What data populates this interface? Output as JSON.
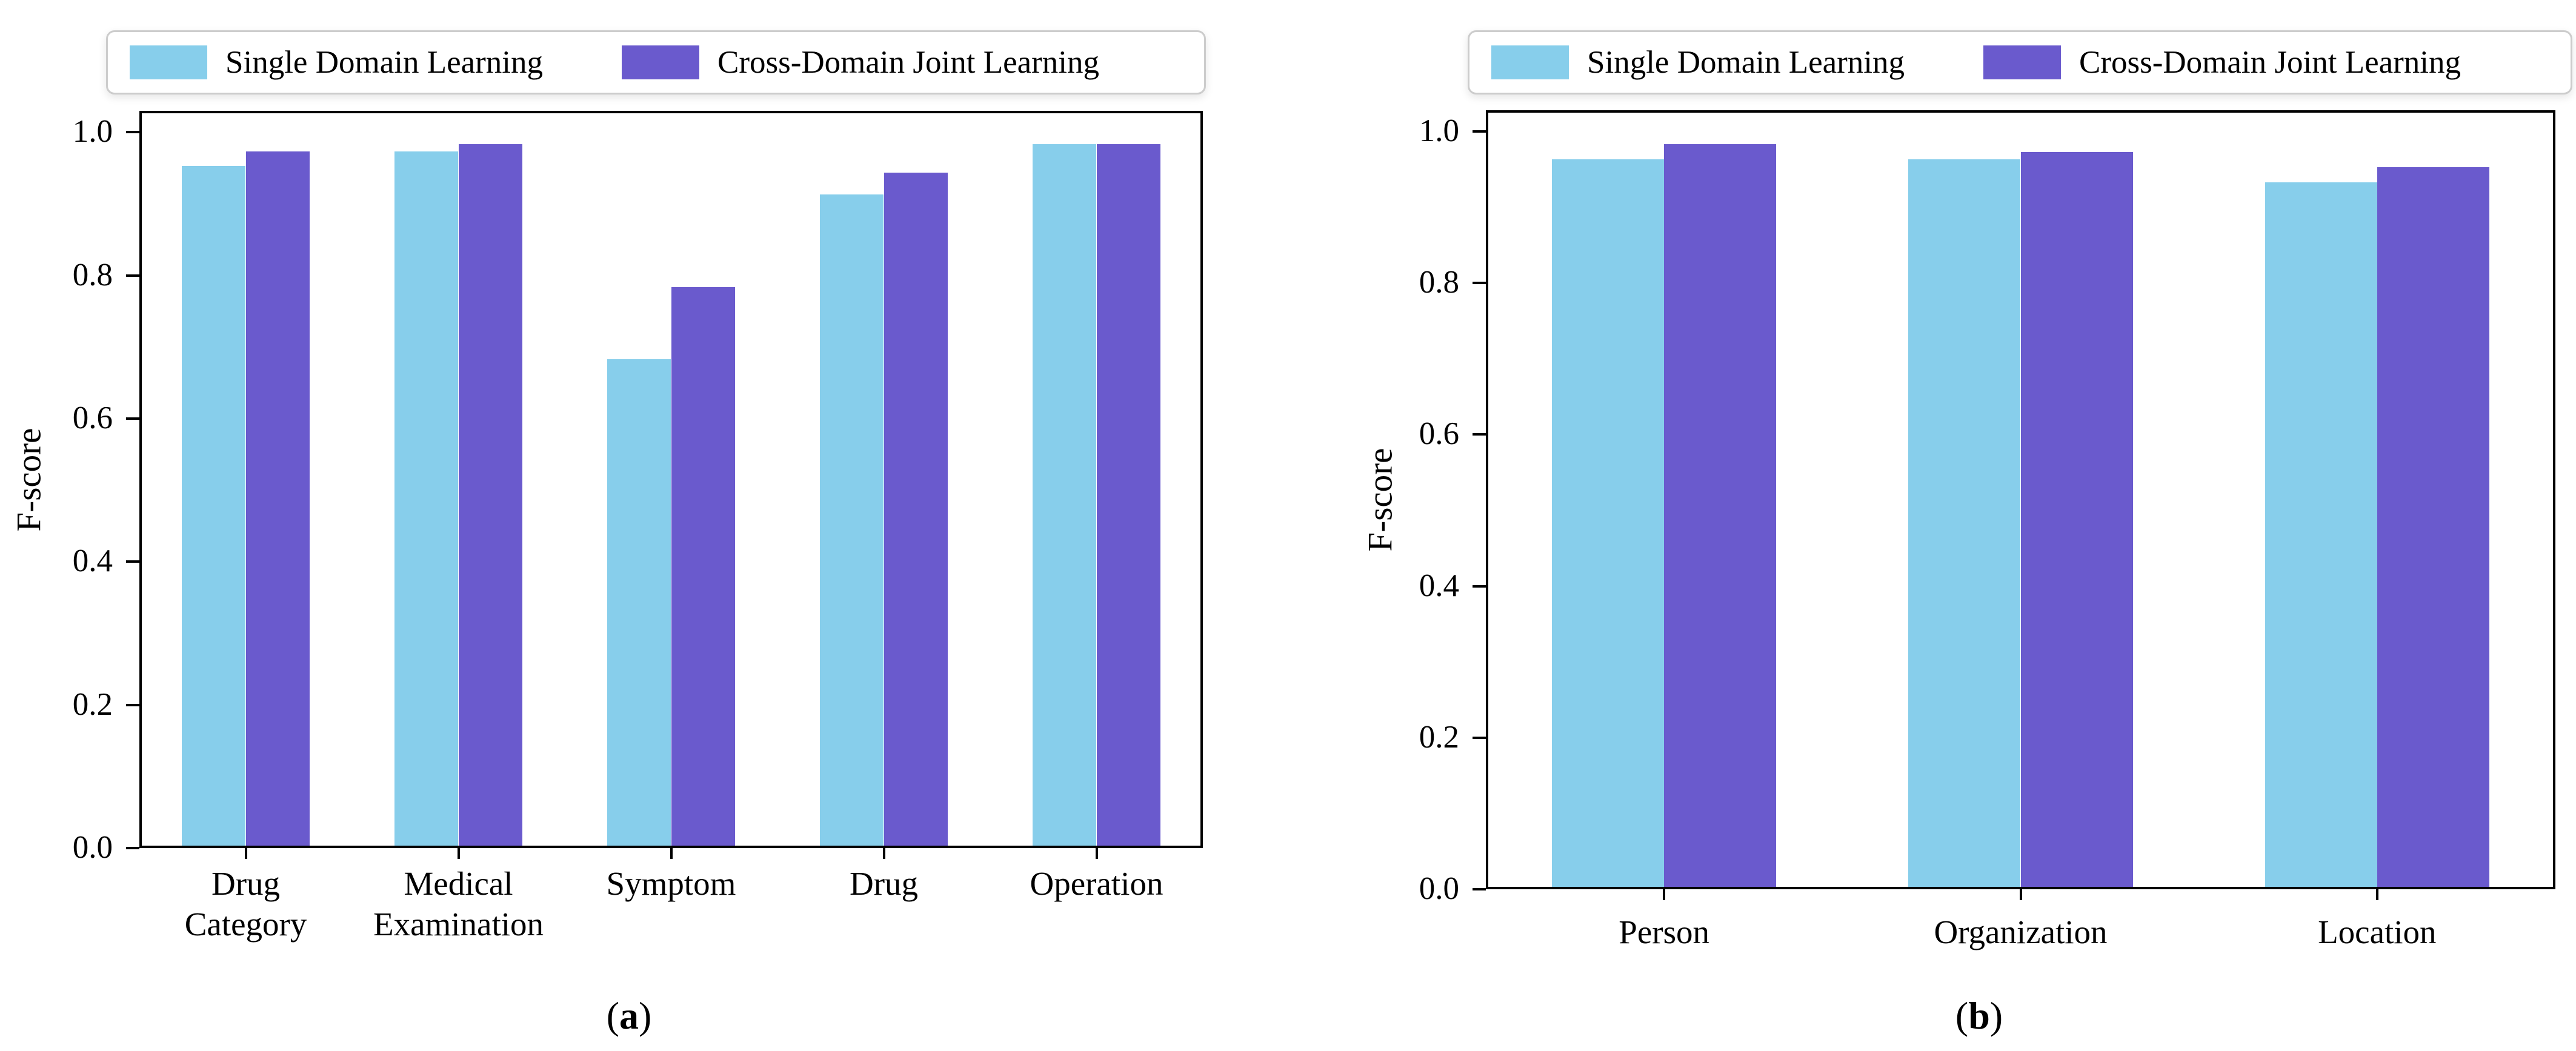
{
  "figure": {
    "background": "#ffffff",
    "axis_color": "#000000",
    "legend_border_color": "#cccccc"
  },
  "chart_data": [
    {
      "id": "a",
      "type": "bar",
      "caption": {
        "open": "(",
        "letter": "a",
        "close": ")"
      },
      "ylabel": "F-score",
      "xlabel": "",
      "categories": [
        [
          "Drug",
          "Category"
        ],
        [
          "Medical",
          "Examination"
        ],
        [
          "Symptom"
        ],
        [
          "Drug"
        ],
        [
          "Operation"
        ]
      ],
      "series": [
        {
          "name": "Single Domain Learning",
          "color": "#87CEEB",
          "values": [
            0.95,
            0.97,
            0.68,
            0.91,
            0.98
          ]
        },
        {
          "name": "Cross-Domain Joint Learning",
          "color": "#6A5ACD",
          "values": [
            0.97,
            0.98,
            0.78,
            0.94,
            0.98
          ]
        }
      ],
      "yticks": [
        "0.0",
        "0.2",
        "0.4",
        "0.6",
        "0.8",
        "1.0"
      ],
      "ylim": [
        0,
        1.03
      ],
      "grid": false,
      "legend_position": "top"
    },
    {
      "id": "b",
      "type": "bar",
      "caption": {
        "open": "(",
        "letter": "b",
        "close": ")"
      },
      "ylabel": "F-score",
      "xlabel": "",
      "categories": [
        [
          "Person"
        ],
        [
          "Organization"
        ],
        [
          "Location"
        ]
      ],
      "series": [
        {
          "name": "Single Domain Learning",
          "color": "#87CEEB",
          "values": [
            0.96,
            0.96,
            0.93
          ]
        },
        {
          "name": "Cross-Domain Joint Learning",
          "color": "#6A5ACD",
          "values": [
            0.98,
            0.97,
            0.95
          ]
        }
      ],
      "yticks": [
        "0.0",
        "0.2",
        "0.4",
        "0.6",
        "0.8",
        "1.0"
      ],
      "ylim": [
        0,
        1.028
      ],
      "grid": false,
      "legend_position": "top"
    }
  ]
}
